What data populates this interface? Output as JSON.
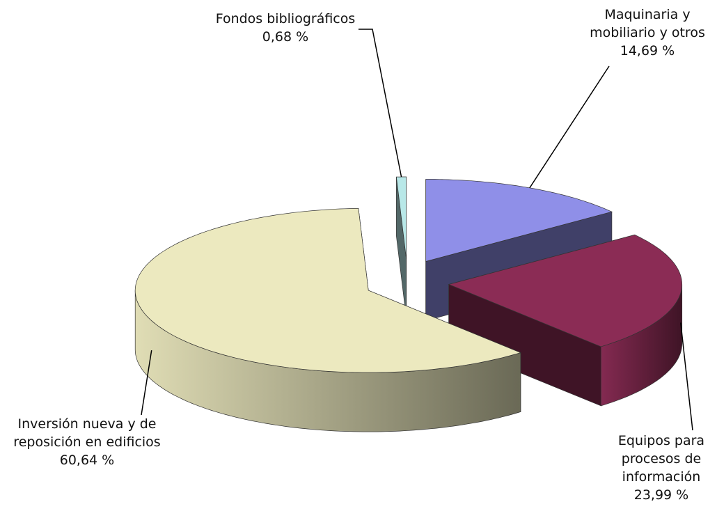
{
  "chart_data": {
    "type": "pie",
    "categories": [
      "Maquinaria y mobiliario y otros",
      "Equipos para procesos de información",
      "Inversión nueva y de reposición en edificios",
      "Fondos bibliográficos"
    ],
    "values": [
      14.69,
      23.99,
      60.64,
      0.68
    ],
    "value_labels": [
      "14,69 %",
      "23,99 %",
      "60,64 %",
      "0,68 %"
    ],
    "colors": [
      "#8f8fe8",
      "#8b2c55",
      "#ece9bf",
      "#b8e8e8"
    ]
  }
}
